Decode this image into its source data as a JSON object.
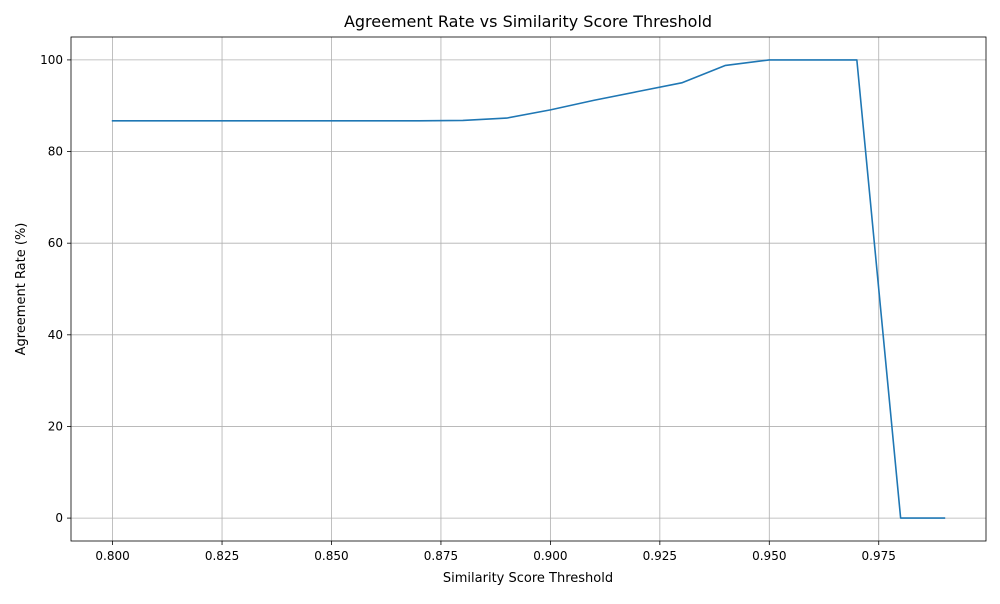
{
  "chart_data": {
    "type": "line",
    "title": "Agreement Rate vs Similarity Score Threshold",
    "xlabel": "Similarity Score Threshold",
    "ylabel": "Agreement Rate (%)",
    "xlim": [
      0.7905,
      0.9995
    ],
    "ylim": [
      -5,
      105
    ],
    "xticks": [
      0.8,
      0.825,
      0.85,
      0.875,
      0.9,
      0.925,
      0.95,
      0.975
    ],
    "xtick_labels": [
      "0.800",
      "0.825",
      "0.850",
      "0.875",
      "0.900",
      "0.925",
      "0.950",
      "0.975"
    ],
    "yticks": [
      0,
      20,
      40,
      60,
      80,
      100
    ],
    "ytick_labels": [
      "0",
      "20",
      "40",
      "60",
      "80",
      "100"
    ],
    "grid": true,
    "series": [
      {
        "color": "#1f77b4",
        "x": [
          0.8,
          0.81,
          0.82,
          0.83,
          0.84,
          0.85,
          0.86,
          0.87,
          0.88,
          0.89,
          0.9,
          0.91,
          0.92,
          0.93,
          0.94,
          0.95,
          0.96,
          0.97,
          0.98,
          0.99
        ],
        "y": [
          86.7,
          86.7,
          86.7,
          86.7,
          86.7,
          86.7,
          86.7,
          86.7,
          86.8,
          87.3,
          89.1,
          91.2,
          93.1,
          95.0,
          98.8,
          100.0,
          100.0,
          100.0,
          0.0,
          0.0
        ]
      }
    ]
  }
}
